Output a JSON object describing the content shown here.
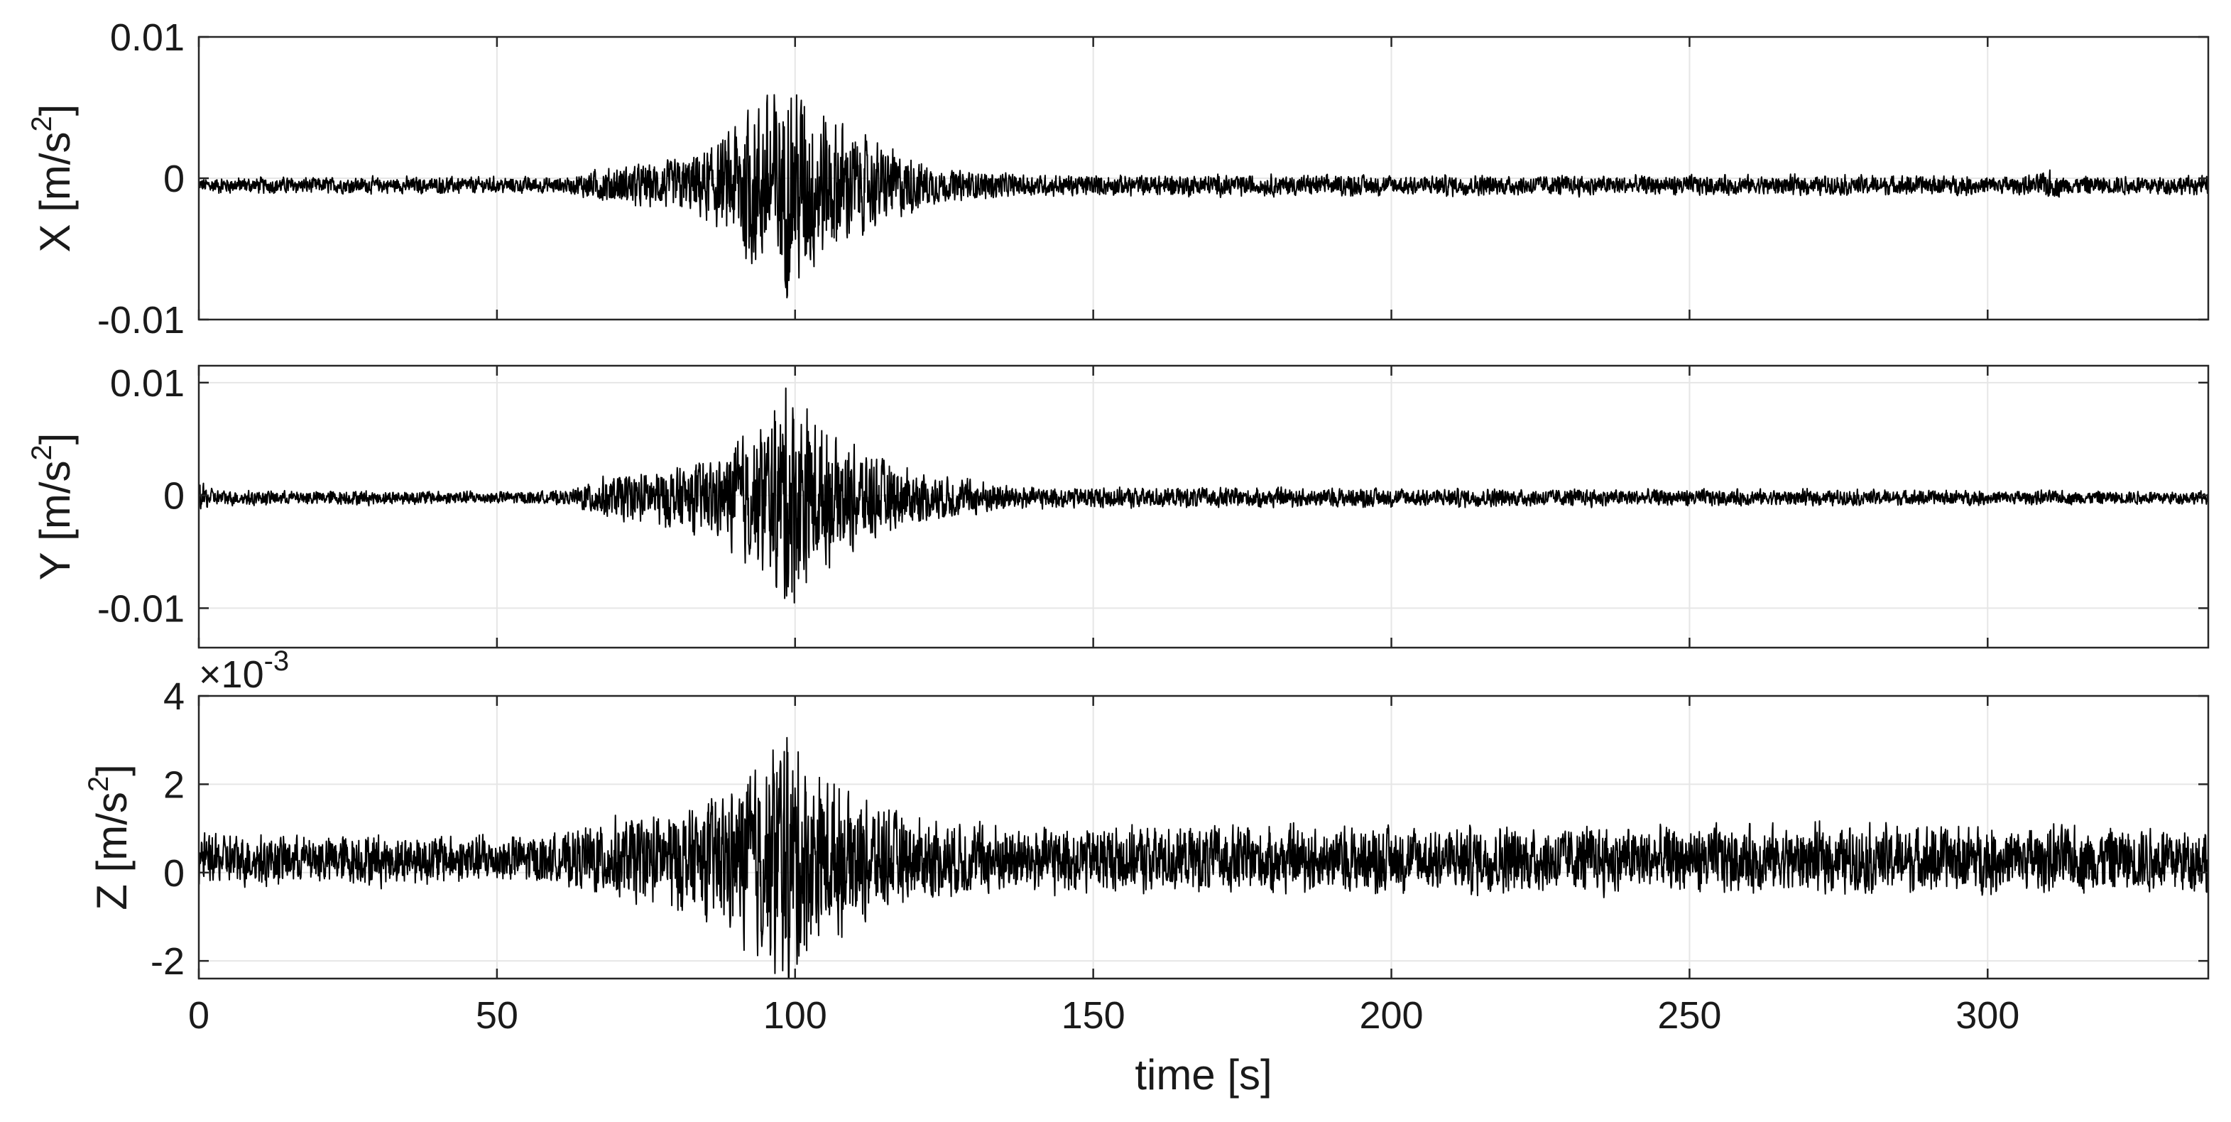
{
  "chart_data": [
    {
      "type": "line",
      "id": "x",
      "ylabel_main": "X [m/s",
      "ylabel_sup": "2",
      "ylabel_close": "]",
      "xlim": [
        0,
        337
      ],
      "ylim": [
        -0.01,
        0.01
      ],
      "yticks": [
        -0.01,
        0,
        0.01
      ],
      "ytick_labels": [
        "-0.01",
        "0",
        "0.01"
      ],
      "xticks": [
        0,
        50,
        100,
        150,
        200,
        250,
        300
      ],
      "grid": true,
      "baseline": -0.0005,
      "noise_amplitude": 0.00045,
      "envelope": [
        {
          "x": 0,
          "amp": 0.0006
        },
        {
          "x": 62,
          "amp": 0.0006
        },
        {
          "x": 66,
          "amp": 0.0012
        },
        {
          "x": 80,
          "amp": 0.002
        },
        {
          "x": 88,
          "amp": 0.0035
        },
        {
          "x": 91,
          "amp": 0.006
        },
        {
          "x": 96,
          "amp": 0.0075
        },
        {
          "x": 99,
          "amp": 0.0085
        },
        {
          "x": 103,
          "amp": 0.007
        },
        {
          "x": 110,
          "amp": 0.004
        },
        {
          "x": 115,
          "amp": 0.003
        },
        {
          "x": 125,
          "amp": 0.0012
        },
        {
          "x": 140,
          "amp": 0.0008
        },
        {
          "x": 308,
          "amp": 0.0007
        },
        {
          "x": 310,
          "amp": 0.0012
        },
        {
          "x": 313,
          "amp": 0.0007
        },
        {
          "x": 337,
          "amp": 0.0007
        }
      ]
    },
    {
      "type": "line",
      "id": "y",
      "ylabel_main": "Y [m/s",
      "ylabel_sup": "2",
      "ylabel_close": "]",
      "xlim": [
        0,
        337
      ],
      "ylim": [
        -0.0135,
        0.0115
      ],
      "yticks": [
        -0.01,
        0,
        0.01
      ],
      "ytick_labels": [
        "-0.01",
        "0",
        "0.01"
      ],
      "xticks": [
        0,
        50,
        100,
        150,
        200,
        250,
        300
      ],
      "grid": true,
      "baseline": -0.0002,
      "noise_amplitude": 0.0004,
      "envelope": [
        {
          "x": 0,
          "amp": 0.0015
        },
        {
          "x": 3,
          "amp": 0.0007
        },
        {
          "x": 62,
          "amp": 0.0006
        },
        {
          "x": 66,
          "amp": 0.0018
        },
        {
          "x": 80,
          "amp": 0.003
        },
        {
          "x": 88,
          "amp": 0.004
        },
        {
          "x": 91,
          "amp": 0.006
        },
        {
          "x": 96,
          "amp": 0.008
        },
        {
          "x": 99,
          "amp": 0.0115
        },
        {
          "x": 104,
          "amp": 0.007
        },
        {
          "x": 110,
          "amp": 0.005
        },
        {
          "x": 120,
          "amp": 0.0025
        },
        {
          "x": 140,
          "amp": 0.001
        },
        {
          "x": 337,
          "amp": 0.0006
        }
      ]
    },
    {
      "type": "line",
      "id": "z",
      "ylabel_main": "Z [m/s",
      "ylabel_sup": "2",
      "ylabel_close": "]",
      "exponent_prefix": "×10",
      "exponent": "-3",
      "xlabel": "time [s]",
      "xlim": [
        0,
        337
      ],
      "ylim": [
        -2.4,
        4
      ],
      "yticks": [
        -2,
        0,
        2,
        4
      ],
      "ytick_labels": [
        "-2",
        "0",
        "2",
        "4"
      ],
      "xticks": [
        0,
        50,
        100,
        150,
        200,
        250,
        300
      ],
      "xtick_labels": [
        "0",
        "50",
        "100",
        "150",
        "200",
        "250",
        "300"
      ],
      "grid": true,
      "baseline": 0.3,
      "noise_amplitude": 0.4,
      "envelope": [
        {
          "x": 0,
          "amp": 0.6
        },
        {
          "x": 62,
          "amp": 0.6
        },
        {
          "x": 66,
          "amp": 0.9
        },
        {
          "x": 80,
          "amp": 1.2
        },
        {
          "x": 88,
          "amp": 1.6
        },
        {
          "x": 93,
          "amp": 2.2
        },
        {
          "x": 98,
          "amp": 3.3
        },
        {
          "x": 103,
          "amp": 2.2
        },
        {
          "x": 110,
          "amp": 1.6
        },
        {
          "x": 120,
          "amp": 1.0
        },
        {
          "x": 140,
          "amp": 0.8
        },
        {
          "x": 337,
          "amp": 0.8
        }
      ]
    }
  ],
  "colors": {
    "trace": "#000000",
    "axis": "#262626",
    "grid": "#e6e6e6",
    "text": "#1a1a1a"
  }
}
